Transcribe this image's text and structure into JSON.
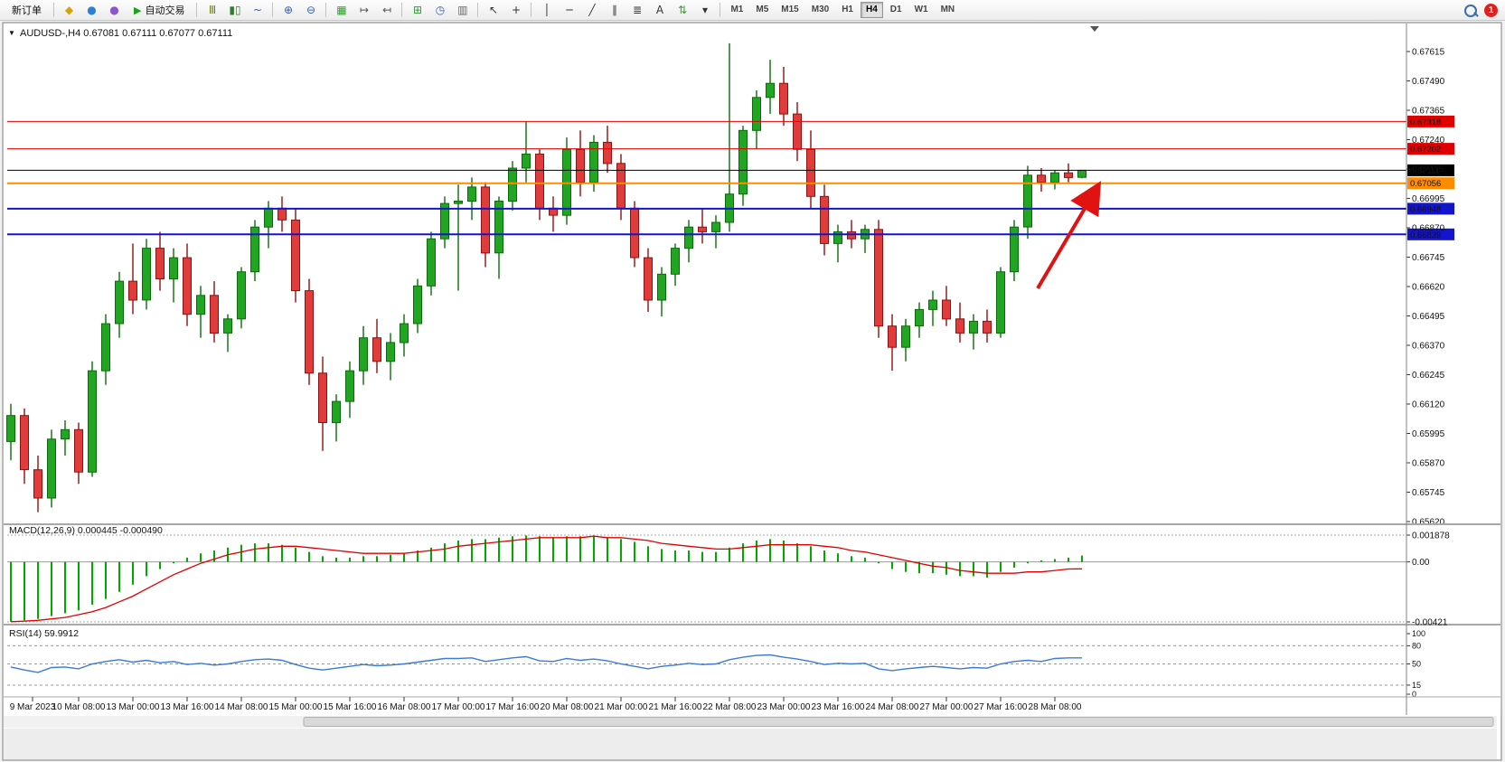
{
  "toolbar": {
    "badge": "1",
    "items": [
      {
        "t": "btn",
        "name": "new-order-button",
        "label": "新订单"
      },
      {
        "t": "sep"
      },
      {
        "t": "ico",
        "name": "metaeditor-icon",
        "g": "◆",
        "c": "#d9a400"
      },
      {
        "t": "ico",
        "name": "community-icon",
        "g": "●",
        "c": "#2f7fd6"
      },
      {
        "t": "ico",
        "name": "market-icon",
        "g": "●",
        "c": "#8a56c9"
      },
      {
        "t": "btn",
        "name": "autotrading-button",
        "label": "自动交易",
        "g": "▶",
        "c": "#17a317"
      },
      {
        "t": "sep"
      },
      {
        "t": "ico",
        "name": "bar-chart-icon",
        "g": "Ⅲ",
        "c": "#6b7d1f"
      },
      {
        "t": "ico",
        "name": "candlestick-chart-icon",
        "g": "▮▯",
        "c": "#2f7d2f"
      },
      {
        "t": "ico",
        "name": "line-chart-icon",
        "g": "~",
        "c": "#2f5fae"
      },
      {
        "t": "sep"
      },
      {
        "t": "ico",
        "name": "zoom-in-icon",
        "g": "⊕",
        "c": "#2f5fae"
      },
      {
        "t": "ico",
        "name": "zoom-out-icon",
        "g": "⊖",
        "c": "#2f5fae"
      },
      {
        "t": "sep"
      },
      {
        "t": "ico",
        "name": "tile-windows-icon",
        "g": "▦",
        "c": "#2f9e2f"
      },
      {
        "t": "ico",
        "name": "auto-scroll-icon",
        "g": "↦",
        "c": "#555555"
      },
      {
        "t": "ico",
        "name": "chart-shift-icon",
        "g": "↤",
        "c": "#555555"
      },
      {
        "t": "sep"
      },
      {
        "t": "ico",
        "name": "new-chart-icon",
        "g": "⊞",
        "c": "#2f9e2f"
      },
      {
        "t": "ico",
        "name": "periods-icon",
        "g": "◷",
        "c": "#2f5fae"
      },
      {
        "t": "ico",
        "name": "templates-icon",
        "g": "▥",
        "c": "#666666"
      },
      {
        "t": "sep"
      },
      {
        "t": "ico",
        "name": "cursor-icon",
        "g": "↖",
        "c": "#333333"
      },
      {
        "t": "ico",
        "name": "crosshair-icon",
        "g": "+",
        "c": "#333333"
      },
      {
        "t": "sep"
      },
      {
        "t": "ico",
        "name": "vertical-line-icon",
        "g": "│",
        "c": "#333333"
      },
      {
        "t": "ico",
        "name": "horizontal-line-icon",
        "g": "─",
        "c": "#333333"
      },
      {
        "t": "ico",
        "name": "trendline-icon",
        "g": "╱",
        "c": "#333333"
      },
      {
        "t": "ico",
        "name": "channel-icon",
        "g": "∥",
        "c": "#333333"
      },
      {
        "t": "ico",
        "name": "fibonacci-icon",
        "g": "≣",
        "c": "#333333"
      },
      {
        "t": "ico",
        "name": "text-icon",
        "g": "A",
        "c": "#333333"
      },
      {
        "t": "ico",
        "name": "arrows-icon",
        "g": "⇅",
        "c": "#2f9e2f"
      },
      {
        "t": "ico",
        "name": "more-tools-icon",
        "g": "▾",
        "c": "#333333"
      },
      {
        "t": "sep"
      },
      {
        "t": "tf",
        "label": "M1"
      },
      {
        "t": "tf",
        "label": "M5"
      },
      {
        "t": "tf",
        "label": "M15"
      },
      {
        "t": "tf",
        "label": "M30"
      },
      {
        "t": "tf",
        "label": "H1"
      },
      {
        "t": "tf",
        "label": "H4",
        "active": true
      },
      {
        "t": "tf",
        "label": "D1"
      },
      {
        "t": "tf",
        "label": "W1"
      },
      {
        "t": "tf",
        "label": "MN"
      }
    ]
  },
  "chart": {
    "title": "AUDUSD-,H4  0.67081 0.67111 0.67077 0.67111",
    "symbol": "AUDUSD-",
    "timeframe": "H4",
    "dropdown_glyph": "▼"
  },
  "chart_data": {
    "type": "candlestick",
    "symbol": "AUDUSD-",
    "timeframe": "H4",
    "ylim": [
      0.6562,
      0.67615
    ],
    "price_ticks": [
      "0.67615",
      "0.67490",
      "0.67365",
      "0.67240",
      "0.67115",
      "0.66995",
      "0.66870",
      "0.66745",
      "0.66620",
      "0.66495",
      "0.66370",
      "0.66245",
      "0.66120",
      "0.65995",
      "0.65870",
      "0.65745",
      "0.65620"
    ],
    "colors": {
      "bull": "#22a522",
      "bear": "#e03c3c",
      "bull_stroke": "#0b6b0b",
      "bear_stroke": "#8e1010",
      "macd_hist": "#00a800",
      "macd_signal": "#e00000",
      "rsi_line": "#3a7bd5"
    },
    "candles": [
      [
        0.6596,
        0.6612,
        0.6588,
        0.6607
      ],
      [
        0.6607,
        0.661,
        0.6578,
        0.6584
      ],
      [
        0.6584,
        0.659,
        0.6566,
        0.6572
      ],
      [
        0.6572,
        0.6601,
        0.6568,
        0.6597
      ],
      [
        0.6597,
        0.6605,
        0.659,
        0.6601
      ],
      [
        0.6601,
        0.6604,
        0.6578,
        0.6583
      ],
      [
        0.6583,
        0.663,
        0.6581,
        0.6626
      ],
      [
        0.6626,
        0.665,
        0.662,
        0.6646
      ],
      [
        0.6646,
        0.6668,
        0.664,
        0.6664
      ],
      [
        0.6664,
        0.668,
        0.665,
        0.6656
      ],
      [
        0.6656,
        0.6682,
        0.6652,
        0.6678
      ],
      [
        0.6678,
        0.6685,
        0.666,
        0.6665
      ],
      [
        0.6665,
        0.6678,
        0.6655,
        0.6674
      ],
      [
        0.6674,
        0.668,
        0.6645,
        0.665
      ],
      [
        0.665,
        0.6662,
        0.664,
        0.6658
      ],
      [
        0.6658,
        0.6664,
        0.6638,
        0.6642
      ],
      [
        0.6642,
        0.665,
        0.6634,
        0.6648
      ],
      [
        0.6648,
        0.667,
        0.6644,
        0.6668
      ],
      [
        0.6668,
        0.669,
        0.6664,
        0.6687
      ],
      [
        0.6687,
        0.6698,
        0.6678,
        0.6695
      ],
      [
        0.6695,
        0.67,
        0.6685,
        0.669
      ],
      [
        0.669,
        0.6695,
        0.6655,
        0.666
      ],
      [
        0.666,
        0.6665,
        0.662,
        0.6625
      ],
      [
        0.6625,
        0.6632,
        0.6592,
        0.6604
      ],
      [
        0.6604,
        0.6616,
        0.6596,
        0.6613
      ],
      [
        0.6613,
        0.663,
        0.6606,
        0.6626
      ],
      [
        0.6626,
        0.6645,
        0.662,
        0.664
      ],
      [
        0.664,
        0.6648,
        0.6625,
        0.663
      ],
      [
        0.663,
        0.6642,
        0.6622,
        0.6638
      ],
      [
        0.6638,
        0.665,
        0.6632,
        0.6646
      ],
      [
        0.6646,
        0.6665,
        0.6642,
        0.6662
      ],
      [
        0.6662,
        0.6685,
        0.6658,
        0.6682
      ],
      [
        0.6682,
        0.67,
        0.6678,
        0.6697
      ],
      [
        0.6697,
        0.6705,
        0.666,
        0.6698
      ],
      [
        0.6698,
        0.6708,
        0.669,
        0.6704
      ],
      [
        0.6704,
        0.6706,
        0.667,
        0.6676
      ],
      [
        0.6676,
        0.67,
        0.6665,
        0.6698
      ],
      [
        0.6698,
        0.6715,
        0.6694,
        0.6712
      ],
      [
        0.6712,
        0.6732,
        0.6706,
        0.6718
      ],
      [
        0.6718,
        0.672,
        0.669,
        0.6695
      ],
      [
        0.6695,
        0.67,
        0.6685,
        0.6692
      ],
      [
        0.6692,
        0.6725,
        0.6688,
        0.672
      ],
      [
        0.672,
        0.6728,
        0.67,
        0.6706
      ],
      [
        0.6706,
        0.6726,
        0.6702,
        0.6723
      ],
      [
        0.6723,
        0.673,
        0.671,
        0.6714
      ],
      [
        0.6714,
        0.6718,
        0.669,
        0.6695
      ],
      [
        0.6695,
        0.6698,
        0.667,
        0.6674
      ],
      [
        0.6674,
        0.6678,
        0.6651,
        0.6656
      ],
      [
        0.6656,
        0.667,
        0.6649,
        0.6667
      ],
      [
        0.6667,
        0.668,
        0.6662,
        0.6678
      ],
      [
        0.6678,
        0.669,
        0.6672,
        0.6687
      ],
      [
        0.6687,
        0.6695,
        0.668,
        0.6685
      ],
      [
        0.6685,
        0.6692,
        0.6678,
        0.6689
      ],
      [
        0.6689,
        0.6765,
        0.6685,
        0.6701
      ],
      [
        0.6701,
        0.673,
        0.6696,
        0.6728
      ],
      [
        0.6728,
        0.6745,
        0.672,
        0.6742
      ],
      [
        0.6742,
        0.6758,
        0.6735,
        0.6748
      ],
      [
        0.6748,
        0.6755,
        0.673,
        0.6735
      ],
      [
        0.6735,
        0.674,
        0.6715,
        0.672
      ],
      [
        0.672,
        0.6728,
        0.6695,
        0.67
      ],
      [
        0.67,
        0.6705,
        0.6675,
        0.668
      ],
      [
        0.668,
        0.6688,
        0.6672,
        0.6685
      ],
      [
        0.6685,
        0.669,
        0.6678,
        0.6682
      ],
      [
        0.6682,
        0.6688,
        0.6676,
        0.6686
      ],
      [
        0.6686,
        0.669,
        0.664,
        0.6645
      ],
      [
        0.6645,
        0.665,
        0.6626,
        0.6636
      ],
      [
        0.6636,
        0.6648,
        0.663,
        0.6645
      ],
      [
        0.6645,
        0.6655,
        0.664,
        0.6652
      ],
      [
        0.6652,
        0.666,
        0.6645,
        0.6656
      ],
      [
        0.6656,
        0.6662,
        0.6645,
        0.6648
      ],
      [
        0.6648,
        0.6655,
        0.6638,
        0.6642
      ],
      [
        0.6642,
        0.665,
        0.6635,
        0.6647
      ],
      [
        0.6647,
        0.6652,
        0.6638,
        0.6642
      ],
      [
        0.6642,
        0.667,
        0.664,
        0.6668
      ],
      [
        0.6668,
        0.669,
        0.6664,
        0.6687
      ],
      [
        0.6687,
        0.6713,
        0.6682,
        0.6709
      ],
      [
        0.6709,
        0.6712,
        0.6702,
        0.6706
      ],
      [
        0.6706,
        0.6711,
        0.6703,
        0.671
      ],
      [
        0.671,
        0.6714,
        0.6706,
        0.6708
      ],
      [
        0.67081,
        0.67111,
        0.67077,
        0.67111
      ]
    ],
    "time_labels": [
      "9 Mar 2023",
      "10 Mar 08:00",
      "13 Mar 00:00",
      "13 Mar 16:00",
      "14 Mar 08:00",
      "15 Mar 00:00",
      "15 Mar 16:00",
      "16 Mar 08:00",
      "17 Mar 00:00",
      "17 Mar 16:00",
      "20 Mar 08:00",
      "21 Mar 00:00",
      "21 Mar 16:00",
      "22 Mar 08:00",
      "23 Mar 00:00",
      "23 Mar 16:00",
      "24 Mar 08:00",
      "27 Mar 00:00",
      "27 Mar 16:00",
      "28 Mar 08:00"
    ],
    "levels": [
      {
        "name": "hline-resistance-1",
        "price": 0.67318,
        "label": "0.67318",
        "color": "#e00000",
        "width": 1
      },
      {
        "name": "hline-resistance-2",
        "price": 0.67202,
        "label": "0.67202",
        "color": "#e00000",
        "width": 1
      },
      {
        "name": "current-price-line",
        "price": 0.67111,
        "label": "0.67111",
        "color": "#000000",
        "width": 1
      },
      {
        "name": "hline-pivot-orange",
        "price": 0.67056,
        "label": "0.67056",
        "color": "#ff8c00",
        "width": 2
      },
      {
        "name": "hline-support-1",
        "price": 0.66948,
        "label": "0.66948",
        "color": "#1414cc",
        "width": 2
      },
      {
        "name": "hline-support-2",
        "price": 0.66839,
        "label": "0.66839",
        "color": "#1414cc",
        "width": 2
      }
    ],
    "current_price": 0.67111,
    "macd": {
      "label": "MACD(12,26,9) 0.000445 -0.000490",
      "ticks": [
        "0.001878",
        "0.00",
        "-0.00421"
      ],
      "ylim": [
        -0.00421,
        0.001878
      ],
      "histogram": [
        -0.0042,
        -0.0041,
        -0.004,
        -0.0038,
        -0.0036,
        -0.0034,
        -0.003,
        -0.0026,
        -0.0021,
        -0.0016,
        -0.001,
        -0.0005,
        -0.0001,
        0.0003,
        0.0006,
        0.0008,
        0.001,
        0.0012,
        0.0013,
        0.0013,
        0.0012,
        0.001,
        0.0007,
        0.0004,
        0.0003,
        0.0003,
        0.0004,
        0.0004,
        0.0005,
        0.0006,
        0.0008,
        0.001,
        0.0013,
        0.0015,
        0.0016,
        0.0016,
        0.0017,
        0.0018,
        0.00185,
        0.0018,
        0.0017,
        0.0018,
        0.0018,
        0.0018,
        0.0017,
        0.0016,
        0.0014,
        0.0011,
        0.0009,
        0.0008,
        0.0008,
        0.0007,
        0.0007,
        0.001,
        0.0013,
        0.0015,
        0.0016,
        0.0015,
        0.0013,
        0.0011,
        0.0008,
        0.0006,
        0.0004,
        0.0003,
        -0.0001,
        -0.0005,
        -0.0007,
        -0.0008,
        -0.0008,
        -0.0009,
        -0.001,
        -0.001,
        -0.0011,
        -0.0007,
        -0.0004,
        -0.0001,
        0.0001,
        0.0002,
        0.0003,
        0.000445
      ],
      "signal": [
        -0.0042,
        -0.00415,
        -0.0041,
        -0.004,
        -0.0039,
        -0.0037,
        -0.0035,
        -0.0032,
        -0.0028,
        -0.0024,
        -0.0019,
        -0.0014,
        -0.0009,
        -0.0005,
        -0.0001,
        0.0002,
        0.0005,
        0.0007,
        0.0009,
        0.001,
        0.0011,
        0.0011,
        0.001,
        0.0009,
        0.0008,
        0.0007,
        0.0006,
        0.0006,
        0.0006,
        0.0006,
        0.0007,
        0.0008,
        0.0009,
        0.0011,
        0.0012,
        0.0013,
        0.0014,
        0.0015,
        0.0016,
        0.0017,
        0.0017,
        0.0017,
        0.0017,
        0.0018,
        0.0017,
        0.0017,
        0.0016,
        0.0015,
        0.0013,
        0.0012,
        0.0011,
        0.001,
        0.0009,
        0.0009,
        0.001,
        0.0011,
        0.0012,
        0.0012,
        0.0012,
        0.0012,
        0.0011,
        0.001,
        0.0008,
        0.0007,
        0.0005,
        0.0003,
        0.0001,
        -0.0001,
        -0.0003,
        -0.0004,
        -0.0006,
        -0.0007,
        -0.0008,
        -0.0008,
        -0.0008,
        -0.0007,
        -0.0007,
        -0.0006,
        -0.0005,
        -0.00049
      ]
    },
    "rsi": {
      "label": "RSI(14) 59.9912",
      "ticks": [
        "100",
        "80",
        "50",
        "15",
        "0"
      ],
      "levels": [
        80,
        50,
        15
      ],
      "ylim": [
        0,
        100
      ],
      "values": [
        45,
        40,
        36,
        44,
        45,
        42,
        50,
        54,
        57,
        53,
        56,
        52,
        54,
        49,
        51,
        48,
        50,
        54,
        57,
        58,
        56,
        49,
        43,
        40,
        43,
        46,
        49,
        47,
        48,
        50,
        53,
        56,
        59,
        59,
        60,
        54,
        57,
        60,
        62,
        55,
        54,
        59,
        56,
        58,
        55,
        50,
        46,
        42,
        46,
        48,
        51,
        49,
        50,
        57,
        61,
        64,
        65,
        61,
        58,
        54,
        49,
        51,
        50,
        51,
        42,
        39,
        42,
        44,
        46,
        44,
        42,
        44,
        43,
        50,
        54,
        56,
        54,
        59,
        60,
        59.99
      ]
    },
    "annotation_arrow": {
      "from": [
        1148,
        296
      ],
      "to": [
        1214,
        184
      ],
      "color": "#e01212"
    }
  }
}
